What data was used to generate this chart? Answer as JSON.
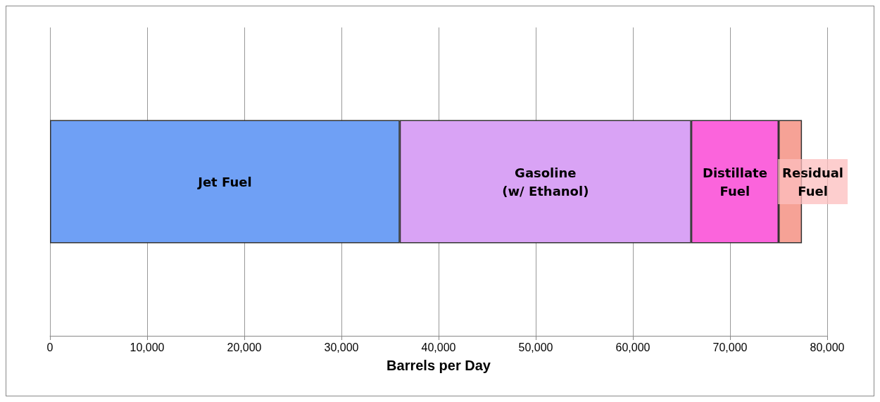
{
  "chart_data": {
    "type": "bar",
    "orientation": "horizontal",
    "stacked": true,
    "xlabel": "Barrels per Day",
    "categories": [
      null
    ],
    "series": [
      {
        "name": "Jet Fuel",
        "color": "#6fa0f5",
        "values": [
          36000
        ]
      },
      {
        "name": "Gasoline\n(w/ Ethanol)",
        "color": "#d9a3f5",
        "values": [
          30000
        ]
      },
      {
        "name": "Distillate\nFuel",
        "color": "#fb64dc",
        "values": [
          9000
        ]
      },
      {
        "name": "Residual\nFuel",
        "color": "#f6a296",
        "values": [
          2400
        ]
      }
    ],
    "xlim": [
      0,
      80000
    ],
    "xticks": [
      0,
      {
        "value": 10000,
        "label": "10,000"
      },
      {
        "value": 20000,
        "label": "20,000"
      },
      {
        "value": 30000,
        "label": "30,000"
      },
      {
        "value": 40000,
        "label": "40,000"
      },
      {
        "value": 50000,
        "label": "50,000"
      },
      {
        "value": 60000,
        "label": "60,000"
      },
      {
        "value": 70000,
        "label": "70,000"
      },
      {
        "value": 80000,
        "label": "80,000"
      }
    ],
    "grid": "x",
    "legend": false
  }
}
